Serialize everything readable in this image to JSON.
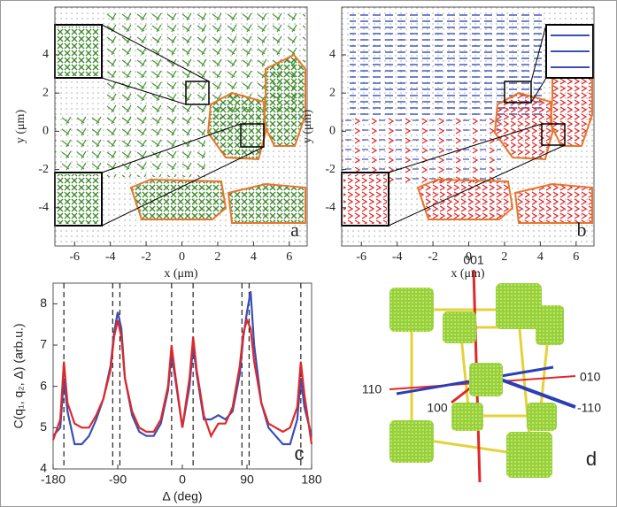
{
  "chart_data": [
    {
      "type": "vector-map",
      "panel_label": "a",
      "x_label": "x (μm)",
      "y_label": "y (μm)",
      "xlim": [
        -7.1,
        7.0
      ],
      "ylim": [
        -6.0,
        6.5
      ],
      "xticks": [
        -6,
        -4,
        -2,
        0,
        2,
        4,
        6
      ],
      "yticks": [
        -4,
        -2,
        0,
        2,
        4
      ]
    },
    {
      "type": "vector-map",
      "panel_label": "b",
      "x_label": "x (μm)",
      "y_label": "y (μm)",
      "xlim": [
        -7.1,
        7.0
      ],
      "ylim": [
        -6.0,
        6.5
      ],
      "xticks": [
        -6,
        -4,
        -2,
        0,
        2,
        4,
        6
      ],
      "yticks": [
        -4,
        -2,
        0,
        2,
        4
      ]
    },
    {
      "type": "line",
      "panel_label": "c",
      "x_label": "Δ (deg)",
      "y_label": "C(q₁, q₂, Δ) (arb.u.)",
      "xlim": [
        -180,
        180
      ],
      "ylim": [
        4,
        8.5
      ],
      "xticks": [
        -180,
        -90,
        0,
        90,
        180
      ],
      "yticks": [
        4,
        5,
        6,
        7,
        8
      ],
      "vlines": [
        -165,
        -97,
        -87,
        -15,
        15,
        83,
        93,
        165
      ],
      "x": [
        -180,
        -170,
        -165,
        -160,
        -150,
        -140,
        -130,
        -120,
        -110,
        -100,
        -95,
        -90,
        -85,
        -80,
        -70,
        -60,
        -50,
        -40,
        -30,
        -20,
        -15,
        -10,
        0,
        10,
        15,
        20,
        30,
        40,
        50,
        60,
        70,
        80,
        85,
        90,
        95,
        100,
        110,
        120,
        130,
        140,
        150,
        160,
        165,
        170,
        180
      ],
      "series": [
        {
          "color": "#3a4fb5",
          "values": [
            4.8,
            5.0,
            6.2,
            5.4,
            4.6,
            4.6,
            4.8,
            5.2,
            5.7,
            6.5,
            7.3,
            7.8,
            7.4,
            6.2,
            5.3,
            4.9,
            4.8,
            4.8,
            5.1,
            5.9,
            6.8,
            6.2,
            5.0,
            6.0,
            7.0,
            6.3,
            5.2,
            5.2,
            5.3,
            5.2,
            5.4,
            6.3,
            7.2,
            7.8,
            8.3,
            7.0,
            5.6,
            5.0,
            4.8,
            4.6,
            4.6,
            5.2,
            6.2,
            5.5,
            4.8
          ]
        },
        {
          "color": "#e0282a",
          "values": [
            4.7,
            5.2,
            6.6,
            5.6,
            5.1,
            5.0,
            5.0,
            5.3,
            5.7,
            6.4,
            7.2,
            7.6,
            7.2,
            6.2,
            5.4,
            5.0,
            4.9,
            4.9,
            5.2,
            6.0,
            7.0,
            6.3,
            5.0,
            6.2,
            7.2,
            6.4,
            5.3,
            4.8,
            5.1,
            5.1,
            5.5,
            6.5,
            7.3,
            7.6,
            7.4,
            6.6,
            5.6,
            5.1,
            5.0,
            4.9,
            5.0,
            5.5,
            6.6,
            5.8,
            4.6
          ]
        }
      ]
    }
  ],
  "diagram": {
    "axis_labels": [
      "001",
      "010",
      "110",
      "100",
      "-110"
    ],
    "panel_label": "d"
  }
}
